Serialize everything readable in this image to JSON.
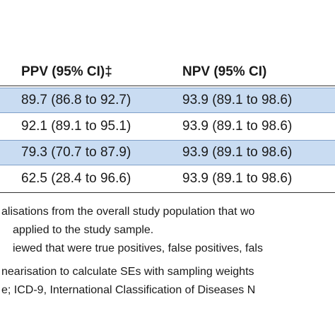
{
  "table": {
    "header": [
      "PPV (95% CI)‡",
      "NPV (95% CI)"
    ],
    "rows": [
      [
        "89.7 (86.8 to 92.7)",
        "93.9 (89.1 to 98.6)"
      ],
      [
        "92.1 (89.1 to 95.1)",
        "93.9 (89.1 to 98.6)"
      ],
      [
        "79.3 (70.7 to 87.9)",
        "93.9 (89.1 to 98.6)"
      ],
      [
        "62.5 (28.4 to 96.6)",
        "93.9 (89.1 to 98.6)"
      ]
    ]
  },
  "footnotes": [
    "alisations from the overall study population that wo",
    "applied to the study sample.",
    "iewed that were true positives, false positives, fals",
    "nearisation to calculate SEs with sampling weights",
    "e; ICD-9, International Classification of Diseases N"
  ]
}
